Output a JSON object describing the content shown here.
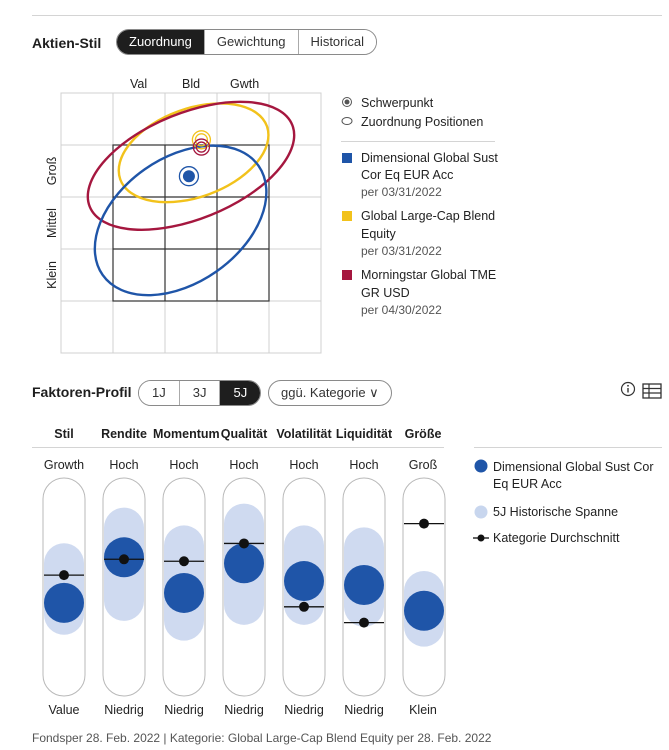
{
  "style_section": {
    "title": "Aktien-Stil",
    "tabs": [
      {
        "label": "Zuordnung",
        "active": true
      },
      {
        "label": "Gewichtung",
        "active": false
      },
      {
        "label": "Historical",
        "active": false
      }
    ],
    "col_labels": [
      "Val",
      "Bld",
      "Gwth"
    ],
    "row_labels": [
      "Groß",
      "Mittel",
      "Klein"
    ],
    "legend": {
      "marker_center": "Schwerpunkt",
      "marker_positions": "Zuordnung Positionen",
      "series": [
        {
          "name_lines": [
            "Dimensional Global Sust",
            "Cor Eq EUR Acc"
          ],
          "date": "per 03/31/2022",
          "color": "#1f55a8"
        },
        {
          "name_lines": [
            "Global Large-Cap Blend",
            "Equity"
          ],
          "date": "per 03/31/2022",
          "color": "#f2c21b"
        },
        {
          "name_lines": [
            "Morningstar Global TME",
            "GR USD"
          ],
          "date": "per 04/30/2022",
          "color": "#a5173f"
        }
      ]
    }
  },
  "factor_section": {
    "title": "Faktoren-Profil",
    "period_tabs": [
      {
        "label": "1J",
        "active": false
      },
      {
        "label": "3J",
        "active": false
      },
      {
        "label": "5J",
        "active": true
      }
    ],
    "compare_dropdown": "ggü. Kategorie ∨",
    "icons": [
      "info-icon",
      "table-icon"
    ],
    "legend": {
      "fund": "Dimensional Global Sust Cor Eq EUR Acc",
      "range": "5J Historische Spanne",
      "category": "Kategorie Durchschnitt"
    },
    "footer": "Fondsper 28. Feb. 2022 | Kategorie: Global Large-Cap Blend Equity per 28. Feb. 2022"
  },
  "chart_data": [
    {
      "type": "scatter",
      "title": "Aktien-Stil",
      "chart_kind": "equity style box (3x3)",
      "x_categories": [
        "Val",
        "Bld",
        "Gwth"
      ],
      "y_categories": [
        "Groß",
        "Mittel",
        "Klein"
      ],
      "grid": true,
      "series": [
        {
          "name": "Dimensional Global Sust Cor Eq EUR Acc",
          "color": "#1f55a8",
          "centroid": {
            "x": 1.46,
            "y": 2.4
          },
          "ellipse": {
            "cx": 1.3,
            "cy": 1.55,
            "rx": 1.83,
            "ry": 1.2,
            "rotation_deg": -35
          }
        },
        {
          "name": "Global Large-Cap Blend Equity",
          "color": "#f2c21b",
          "centroid": {
            "x": 1.7,
            "y": 3.1
          },
          "ellipse": {
            "cx": 1.55,
            "cy": 2.85,
            "rx": 1.5,
            "ry": 0.85,
            "rotation_deg": -20
          }
        },
        {
          "name": "Morningstar Global TME GR USD",
          "color": "#a5173f",
          "centroid": {
            "x": 1.7,
            "y": 2.96
          },
          "ellipse": {
            "cx": 1.5,
            "cy": 2.6,
            "rx": 2.1,
            "ry": 1.02,
            "rotation_deg": -22
          }
        }
      ]
    },
    {
      "type": "scatter",
      "title": "Faktoren-Profil",
      "period": "5J",
      "y_range": [
        0,
        100
      ],
      "factors": [
        {
          "name": "Stil",
          "high": "Growth",
          "low": "Value",
          "fund": 42,
          "range": [
            36,
            62
          ],
          "category": 56
        },
        {
          "name": "Rendite",
          "high": "Hoch",
          "low": "Niedrig",
          "fund": 65,
          "range": [
            43,
            80
          ],
          "category": 64
        },
        {
          "name": "Momentum",
          "high": "Hoch",
          "low": "Niedrig",
          "fund": 47,
          "range": [
            33,
            71
          ],
          "category": 63
        },
        {
          "name": "Qualität",
          "high": "Hoch",
          "low": "Niedrig",
          "fund": 62,
          "range": [
            41,
            82
          ],
          "category": 72
        },
        {
          "name": "Volatilität",
          "high": "Hoch",
          "low": "Niedrig",
          "fund": 53,
          "range": [
            41,
            71
          ],
          "category": 40
        },
        {
          "name": "Liquidität",
          "high": "Hoch",
          "low": "Niedrig",
          "fund": 51,
          "range": [
            40,
            70
          ],
          "category": 32
        },
        {
          "name": "Größe",
          "high": "Groß",
          "low": "Klein",
          "fund": 38,
          "range": [
            30,
            48
          ],
          "category": 82
        }
      ]
    }
  ]
}
